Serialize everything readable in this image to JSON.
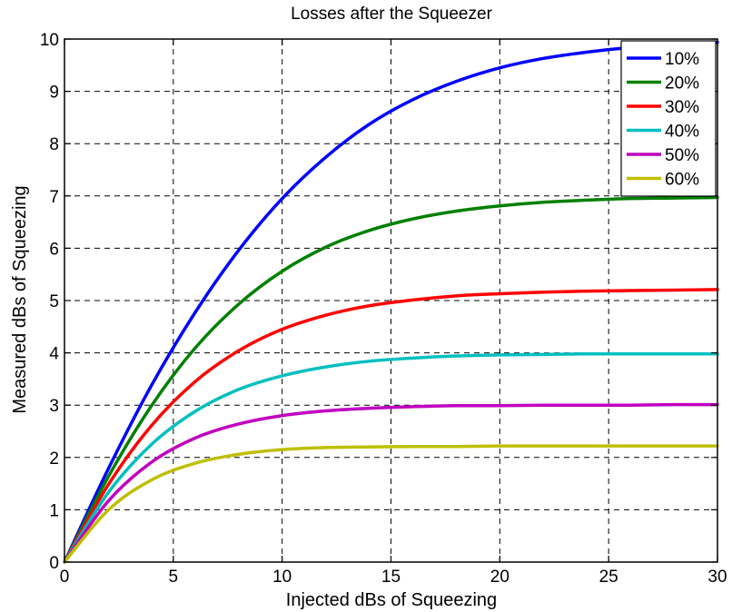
{
  "chart_data": {
    "type": "line",
    "title": "Losses after the Squeezer",
    "xlabel": "Injected dBs of Squeezing",
    "ylabel": "Measured dBs of Squeezing",
    "xlim": [
      0,
      30
    ],
    "ylim": [
      0,
      10
    ],
    "xticks": [
      "0",
      "5",
      "10",
      "15",
      "20",
      "25",
      "30"
    ],
    "yticks": [
      "0",
      "1",
      "2",
      "3",
      "4",
      "5",
      "6",
      "7",
      "8",
      "9",
      "10"
    ],
    "grid": true,
    "legend_position": "top-right",
    "x": [
      0,
      2,
      4,
      6,
      8,
      10,
      12,
      14,
      16,
      18,
      20,
      22,
      24,
      26,
      28,
      30
    ],
    "series": [
      {
        "name": "10%",
        "color": "#0000ff",
        "values": [
          0,
          1.77,
          3.38,
          4.77,
          5.96,
          6.95,
          7.74,
          8.37,
          8.84,
          9.19,
          9.45,
          9.63,
          9.75,
          9.84,
          9.9,
          9.94
        ]
      },
      {
        "name": "20%",
        "color": "#008000",
        "values": [
          0,
          1.62,
          2.99,
          4.09,
          4.93,
          5.56,
          6.02,
          6.34,
          6.56,
          6.71,
          6.81,
          6.88,
          6.92,
          6.95,
          6.96,
          6.97
        ]
      },
      {
        "name": "30%",
        "color": "#ff0000",
        "values": [
          0,
          1.47,
          2.61,
          3.45,
          4.04,
          4.45,
          4.72,
          4.9,
          5.01,
          5.09,
          5.13,
          5.16,
          5.18,
          5.19,
          5.2,
          5.21
        ]
      },
      {
        "name": "40%",
        "color": "#00bfbf",
        "values": [
          0,
          1.32,
          2.25,
          2.88,
          3.3,
          3.56,
          3.73,
          3.84,
          3.9,
          3.94,
          3.96,
          3.97,
          3.98,
          3.98,
          3.98,
          3.98
        ]
      },
      {
        "name": "50%",
        "color": "#bf00bf",
        "values": [
          0,
          1.16,
          1.91,
          2.37,
          2.64,
          2.8,
          2.89,
          2.94,
          2.97,
          2.99,
          2.99,
          3.0,
          3.0,
          3.0,
          3.01,
          3.01
        ]
      },
      {
        "name": "60%",
        "color": "#bfbf00",
        "values": [
          0,
          0.99,
          1.57,
          1.89,
          2.06,
          2.15,
          2.19,
          2.2,
          2.21,
          2.21,
          2.22,
          2.22,
          2.22,
          2.22,
          2.22,
          2.22
        ]
      }
    ]
  }
}
